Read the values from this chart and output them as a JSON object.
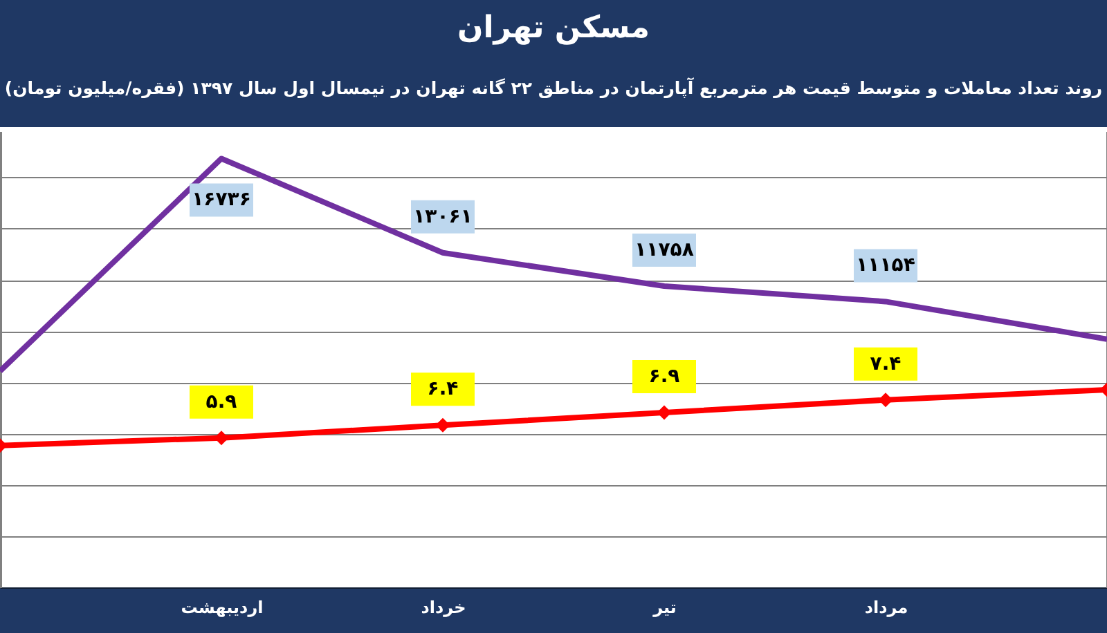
{
  "chart_data": {
    "type": "line",
    "title": "مسکن تهران",
    "subtitle": "روند تعداد معاملات و متوسط قیمت هر مترمربع آپارتمان در مناطق ۲۲ گانه تهران در نیمسال اول سال ۱۳۹۷ (فقره/میلیون تومان)",
    "categories": [
      null,
      "اردیبهشت",
      "خرداد",
      "تیر",
      "مرداد",
      null
    ],
    "series": [
      {
        "color": "#7030a0",
        "marker": "none",
        "values": [
          8440,
          16736,
          13061,
          11758,
          11154,
          9690
        ],
        "value_labels": [
          null,
          "۱۶۷۳۶",
          "۱۳۰۶۱",
          "۱۱۷۵۸",
          "۱۱۱۵۴",
          null
        ]
      },
      {
        "color": "#ff0000",
        "marker": "diamond",
        "axis": "y2",
        "values": [
          5.6,
          5.9,
          6.4,
          6.9,
          7.4,
          7.8
        ],
        "value_labels": [
          null,
          "۵.۹",
          "۶.۴",
          "۶.۹",
          "۷.۴",
          null
        ]
      }
    ],
    "ylim": [
      0,
      17800
    ],
    "y2lim": [
      0,
      18
    ],
    "tick_labels": "x",
    "grid": "y"
  }
}
